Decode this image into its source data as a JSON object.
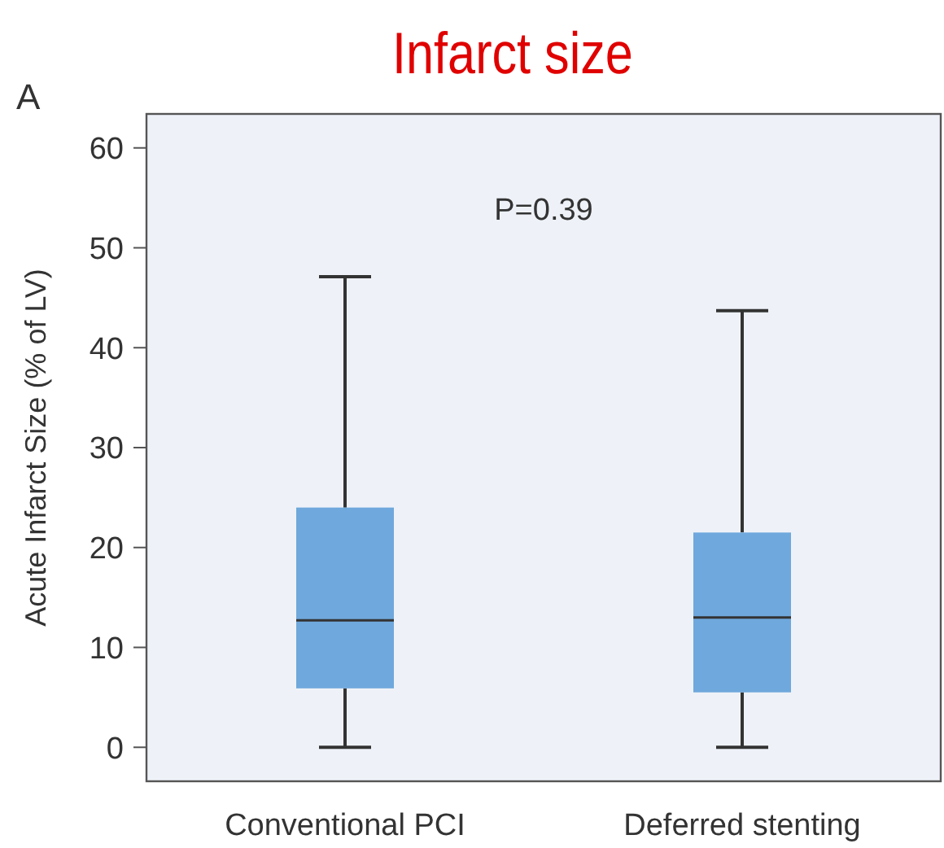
{
  "chart_data": {
    "type": "box",
    "title": "Infarct size",
    "ylabel": "Acute Infarct Size (% of LV)",
    "categories": [
      "Conventional PCI",
      "Deferred stenting"
    ],
    "boxes": [
      {
        "low": 0,
        "q1": 5.9,
        "median": 12.7,
        "q3": 24.0,
        "high": 47.1
      },
      {
        "low": 0,
        "q1": 5.5,
        "median": 13.0,
        "q3": 21.5,
        "high": 43.7
      }
    ],
    "color": "#6fa8dc",
    "ylim": [
      -3.4,
      63.4
    ],
    "yticks": [
      0,
      10,
      20,
      30,
      40,
      50,
      60
    ],
    "grid": false,
    "annotations": [
      "A",
      "P=0.39"
    ]
  }
}
